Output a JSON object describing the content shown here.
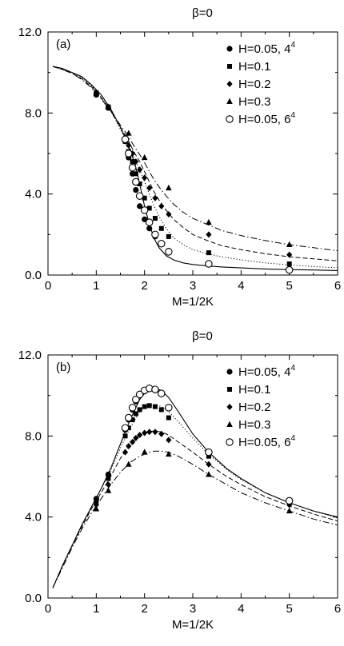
{
  "chart_data": [
    {
      "type": "scatter",
      "title": "β=0",
      "panel_label": "(a)",
      "xlabel": "M=1/2K",
      "ylabel": "",
      "xlim": [
        0,
        6
      ],
      "ylim": [
        0,
        12
      ],
      "xticks": [
        "0",
        "1",
        "2",
        "3",
        "4",
        "5",
        "6"
      ],
      "yticks": [
        "0.0",
        "4.0",
        "8.0",
        "12.0"
      ],
      "legend_position": "top-right",
      "grid": false,
      "series": [
        {
          "name": "H=0.05, 4",
          "sup": "4",
          "marker": "circle-filled",
          "x": [
            1.0,
            1.25,
            1.6,
            1.67,
            1.75,
            1.82,
            1.9,
            2.0,
            2.1,
            2.22,
            2.35,
            2.5,
            3.33,
            5.0
          ],
          "y": [
            8.9,
            8.25,
            6.6,
            5.8,
            5.0,
            4.2,
            3.4,
            2.75,
            2.3,
            1.9,
            1.55,
            1.2,
            0.6,
            0.3
          ]
        },
        {
          "name": "H=0.1",
          "sup": "",
          "marker": "square-filled",
          "x": [
            1.0,
            1.25,
            1.6,
            1.67,
            1.75,
            1.82,
            1.9,
            2.0,
            2.1,
            2.22,
            2.35,
            2.5,
            3.33,
            5.0
          ],
          "y": [
            9.0,
            8.3,
            6.6,
            6.1,
            5.6,
            5.0,
            4.5,
            3.8,
            3.3,
            2.8,
            2.3,
            1.9,
            1.1,
            0.55
          ]
        },
        {
          "name": "H=0.2",
          "sup": "",
          "marker": "diamond-filled",
          "x": [
            1.0,
            1.25,
            1.6,
            1.67,
            1.75,
            1.82,
            1.9,
            2.0,
            2.1,
            2.22,
            2.35,
            2.5,
            3.33,
            5.0
          ],
          "y": [
            9.0,
            8.3,
            6.8,
            6.4,
            6.0,
            5.6,
            5.2,
            4.8,
            4.3,
            3.8,
            3.4,
            3.0,
            2.0,
            1.0
          ]
        },
        {
          "name": "H=0.3",
          "sup": "",
          "marker": "triangle-filled",
          "x": [
            1.0,
            1.25,
            1.67,
            2.0,
            2.5,
            3.33,
            5.0
          ],
          "y": [
            9.0,
            8.3,
            7.0,
            5.8,
            4.3,
            2.6,
            1.5
          ]
        },
        {
          "name": "H=0.05, 6",
          "sup": "4",
          "marker": "circle-open",
          "x": [
            1.6,
            1.67,
            1.75,
            1.82,
            1.9,
            2.0,
            2.1,
            2.22,
            2.35,
            2.5,
            3.33,
            5.0
          ],
          "y": [
            6.7,
            6.0,
            5.3,
            4.6,
            3.9,
            3.2,
            2.6,
            2.0,
            1.55,
            1.15,
            0.55,
            0.25
          ]
        }
      ],
      "curves": [
        {
          "style": "solid",
          "x": [
            0.1,
            0.3,
            0.5,
            0.7,
            0.9,
            1.1,
            1.3,
            1.5,
            1.65,
            1.8,
            1.9,
            2.0,
            2.1,
            2.2,
            2.3,
            2.45,
            2.6,
            2.8,
            3.0,
            3.3,
            3.6,
            4.0,
            4.5,
            5.0,
            5.5,
            6.0
          ],
          "y": [
            10.3,
            10.2,
            10.0,
            9.8,
            9.4,
            8.9,
            8.2,
            7.3,
            6.5,
            5.5,
            4.5,
            3.4,
            2.5,
            1.8,
            1.35,
            0.95,
            0.75,
            0.6,
            0.52,
            0.45,
            0.4,
            0.35,
            0.3,
            0.27,
            0.25,
            0.22
          ]
        },
        {
          "style": "dotted",
          "x": [
            0.1,
            0.3,
            0.5,
            0.7,
            0.9,
            1.1,
            1.3,
            1.5,
            1.65,
            1.8,
            1.9,
            2.0,
            2.1,
            2.2,
            2.3,
            2.45,
            2.6,
            2.8,
            3.0,
            3.3,
            3.6,
            4.0,
            4.5,
            5.0,
            5.5,
            6.0
          ],
          "y": [
            10.3,
            10.2,
            10.0,
            9.75,
            9.35,
            8.8,
            8.1,
            7.2,
            6.5,
            5.7,
            5.2,
            4.6,
            4.0,
            3.4,
            2.9,
            2.3,
            1.85,
            1.5,
            1.25,
            1.05,
            0.9,
            0.75,
            0.6,
            0.5,
            0.42,
            0.36
          ]
        },
        {
          "style": "dashed",
          "x": [
            0.1,
            0.3,
            0.5,
            0.7,
            0.9,
            1.1,
            1.3,
            1.5,
            1.65,
            1.8,
            1.9,
            2.0,
            2.1,
            2.2,
            2.3,
            2.45,
            2.6,
            2.8,
            3.0,
            3.3,
            3.6,
            4.0,
            4.5,
            5.0,
            5.5,
            6.0
          ],
          "y": [
            10.3,
            10.15,
            9.95,
            9.7,
            9.3,
            8.75,
            8.1,
            7.3,
            6.7,
            6.0,
            5.6,
            5.1,
            4.6,
            4.1,
            3.7,
            3.2,
            2.75,
            2.35,
            2.0,
            1.7,
            1.45,
            1.25,
            1.05,
            0.9,
            0.8,
            0.7
          ]
        },
        {
          "style": "dashdot",
          "x": [
            0.1,
            0.3,
            0.5,
            0.7,
            0.9,
            1.1,
            1.3,
            1.5,
            1.65,
            1.8,
            1.9,
            2.0,
            2.1,
            2.2,
            2.3,
            2.45,
            2.6,
            2.8,
            3.0,
            3.3,
            3.6,
            4.0,
            4.5,
            5.0,
            5.5,
            6.0
          ],
          "y": [
            10.3,
            10.15,
            9.95,
            9.65,
            9.25,
            8.7,
            8.1,
            7.4,
            6.9,
            6.3,
            5.95,
            5.55,
            5.1,
            4.7,
            4.35,
            3.9,
            3.5,
            3.1,
            2.8,
            2.5,
            2.2,
            1.95,
            1.7,
            1.5,
            1.35,
            1.2
          ]
        }
      ]
    },
    {
      "type": "scatter",
      "title": "β=0",
      "panel_label": "(b)",
      "xlabel": "M=1/2K",
      "ylabel": "",
      "xlim": [
        0,
        6
      ],
      "ylim": [
        0,
        12
      ],
      "xticks": [
        "0",
        "1",
        "2",
        "3",
        "4",
        "5",
        "6"
      ],
      "yticks": [
        "0.0",
        "4.0",
        "8.0",
        "12.0"
      ],
      "legend_position": "top-right",
      "grid": false,
      "series": [
        {
          "name": "H=0.05, 4",
          "sup": "4",
          "marker": "circle-filled",
          "x": [
            1.0,
            1.25,
            1.6,
            1.67,
            1.75,
            1.82,
            1.9,
            2.0,
            2.1,
            2.22,
            2.35,
            2.5,
            3.33,
            5.0
          ],
          "y": [
            4.9,
            6.1,
            8.3,
            8.8,
            9.3,
            9.7,
            10.0,
            10.2,
            10.3,
            10.3,
            10.1,
            9.4,
            7.2,
            4.8
          ]
        },
        {
          "name": "H=0.1",
          "sup": "",
          "marker": "square-filled",
          "x": [
            1.0,
            1.25,
            1.6,
            1.67,
            1.75,
            1.82,
            1.9,
            2.0,
            2.1,
            2.22,
            2.35,
            2.5,
            3.33,
            5.0
          ],
          "y": [
            4.8,
            5.9,
            8.0,
            8.4,
            8.8,
            9.1,
            9.3,
            9.45,
            9.5,
            9.45,
            9.3,
            8.9,
            7.0,
            4.7
          ]
        },
        {
          "name": "H=0.2",
          "sup": "",
          "marker": "diamond-filled",
          "x": [
            1.0,
            1.25,
            1.6,
            1.67,
            1.75,
            1.82,
            1.9,
            2.0,
            2.1,
            2.22,
            2.35,
            2.5,
            3.33,
            5.0
          ],
          "y": [
            4.6,
            5.6,
            7.2,
            7.5,
            7.7,
            7.9,
            8.05,
            8.15,
            8.2,
            8.2,
            8.1,
            7.8,
            6.6,
            4.6
          ]
        },
        {
          "name": "H=0.3",
          "sup": "",
          "marker": "triangle-filled",
          "x": [
            1.0,
            1.25,
            1.67,
            2.0,
            2.5,
            3.33,
            5.0
          ],
          "y": [
            4.4,
            5.3,
            6.6,
            7.2,
            7.1,
            6.1,
            4.3
          ]
        },
        {
          "name": "H=0.05, 6",
          "sup": "4",
          "marker": "circle-open",
          "x": [
            1.6,
            1.67,
            1.75,
            1.82,
            1.9,
            2.0,
            2.1,
            2.22,
            2.35,
            2.5,
            3.33,
            5.0
          ],
          "y": [
            8.4,
            8.9,
            9.4,
            9.8,
            10.05,
            10.25,
            10.35,
            10.3,
            10.1,
            9.4,
            7.2,
            4.8
          ]
        }
      ],
      "curves": [
        {
          "style": "solid",
          "x": [
            0.1,
            0.3,
            0.5,
            0.7,
            0.9,
            1.1,
            1.3,
            1.5,
            1.7,
            1.9,
            2.05,
            2.2,
            2.35,
            2.5,
            2.7,
            3.0,
            3.33,
            3.7,
            4.0,
            4.5,
            5.0,
            5.5,
            6.0
          ],
          "y": [
            0.5,
            1.6,
            2.6,
            3.6,
            4.5,
            5.4,
            6.4,
            7.6,
            8.8,
            9.8,
            10.25,
            10.35,
            10.25,
            9.9,
            9.2,
            8.1,
            7.2,
            6.4,
            5.9,
            5.2,
            4.7,
            4.3,
            4.0
          ]
        },
        {
          "style": "dotted",
          "x": [
            0.1,
            0.3,
            0.5,
            0.7,
            0.9,
            1.1,
            1.3,
            1.5,
            1.7,
            1.9,
            2.05,
            2.2,
            2.35,
            2.5,
            2.7,
            3.0,
            3.33,
            3.7,
            4.0,
            4.5,
            5.0,
            5.5,
            6.0
          ],
          "y": [
            0.5,
            1.6,
            2.6,
            3.6,
            4.5,
            5.4,
            6.3,
            7.4,
            8.4,
            9.2,
            9.5,
            9.55,
            9.45,
            9.2,
            8.7,
            7.9,
            7.1,
            6.35,
            5.85,
            5.2,
            4.7,
            4.3,
            3.95
          ]
        },
        {
          "style": "dashed",
          "x": [
            0.1,
            0.3,
            0.5,
            0.7,
            0.9,
            1.1,
            1.3,
            1.5,
            1.7,
            1.9,
            2.05,
            2.2,
            2.35,
            2.5,
            2.7,
            3.0,
            3.33,
            3.7,
            4.0,
            4.5,
            5.0,
            5.5,
            6.0
          ],
          "y": [
            0.5,
            1.6,
            2.6,
            3.5,
            4.4,
            5.2,
            6.0,
            6.9,
            7.6,
            8.05,
            8.2,
            8.25,
            8.2,
            8.05,
            7.7,
            7.2,
            6.6,
            6.0,
            5.6,
            5.0,
            4.55,
            4.15,
            3.8
          ]
        },
        {
          "style": "dashdot",
          "x": [
            0.1,
            0.3,
            0.5,
            0.7,
            0.9,
            1.1,
            1.3,
            1.5,
            1.7,
            1.9,
            2.05,
            2.2,
            2.35,
            2.5,
            2.7,
            3.0,
            3.33,
            3.7,
            4.0,
            4.5,
            5.0,
            5.5,
            6.0
          ],
          "y": [
            0.5,
            1.5,
            2.5,
            3.4,
            4.2,
            4.9,
            5.6,
            6.2,
            6.7,
            7.0,
            7.15,
            7.25,
            7.25,
            7.2,
            7.0,
            6.6,
            6.1,
            5.6,
            5.2,
            4.7,
            4.3,
            3.9,
            3.6
          ]
        }
      ]
    }
  ]
}
